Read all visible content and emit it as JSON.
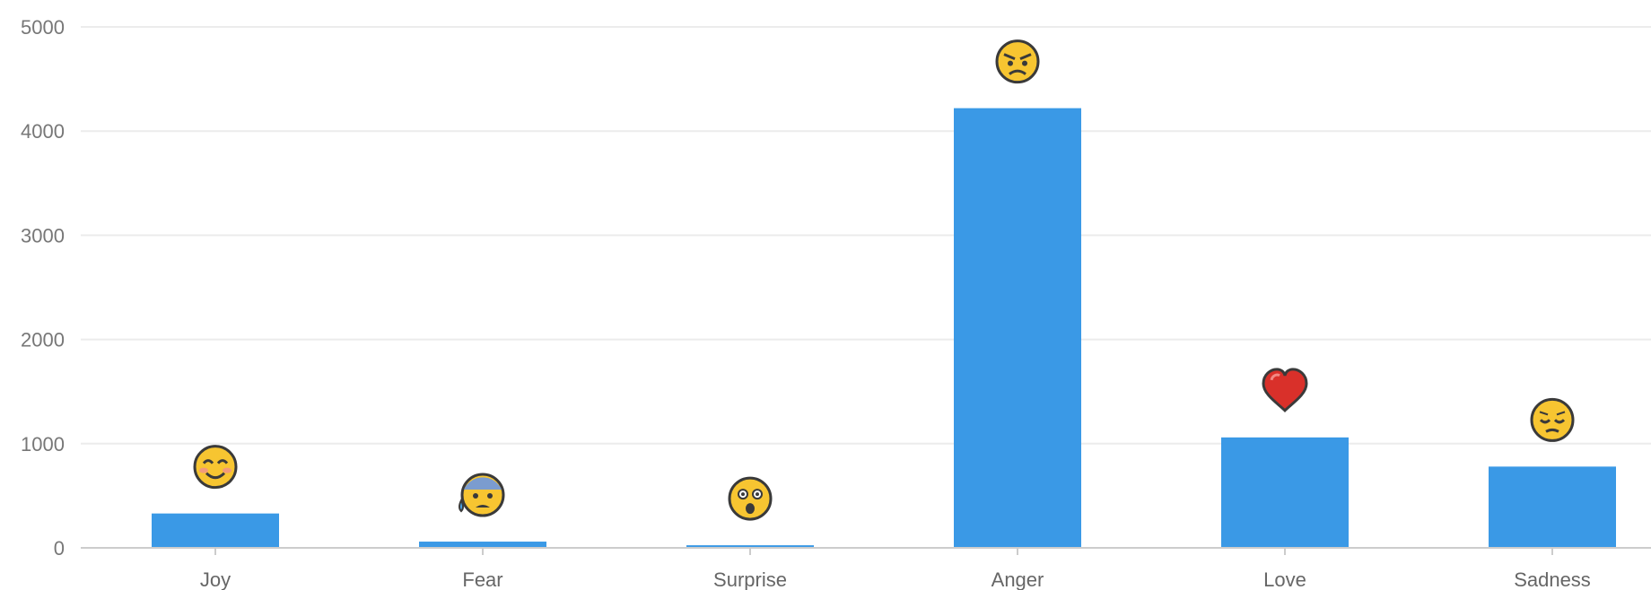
{
  "chart_data": {
    "type": "bar",
    "title": "",
    "xlabel": "",
    "ylabel": "",
    "categories": [
      "Joy",
      "Fear",
      "Surprise",
      "Anger",
      "Love",
      "Sadness"
    ],
    "values": [
      330,
      60,
      25,
      4220,
      1060,
      780
    ],
    "ylim": [
      0,
      5000
    ],
    "yticks": [
      0,
      1000,
      2000,
      3000,
      4000,
      5000
    ],
    "grid": true,
    "legend": "none",
    "bar_color": "#3a99e6",
    "emoji_icons": [
      "smiling-face-icon",
      "anxious-sweat-face-icon",
      "astonished-face-icon",
      "angry-face-icon",
      "red-heart-icon",
      "pensive-face-icon"
    ]
  }
}
